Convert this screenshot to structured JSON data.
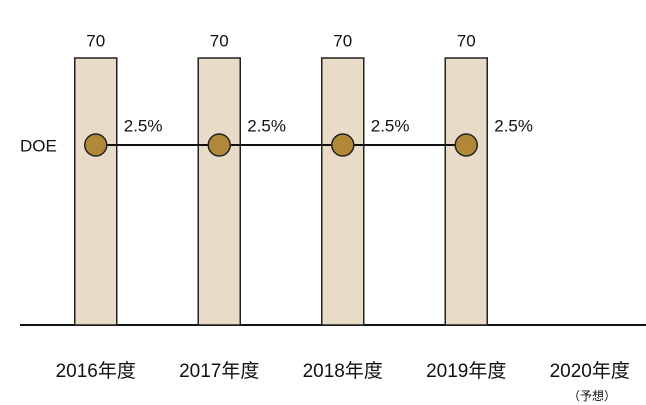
{
  "chart_data": {
    "type": "bar_line",
    "categories": [
      "2016年度",
      "2017年度",
      "2018年度",
      "2019年度",
      "2020年度"
    ],
    "category_note": "（予想）",
    "series": [
      {
        "values": [
          70,
          70,
          70,
          70,
          null
        ],
        "color": "#e8dcc8"
      },
      {
        "name": "DOE",
        "values": [
          2.5,
          2.5,
          2.5,
          2.5,
          null
        ],
        "value_labels": [
          "2.5%",
          "2.5%",
          "2.5%",
          "2.5%",
          null
        ],
        "color": "#b08838",
        "axis": "y2"
      }
    ]
  }
}
